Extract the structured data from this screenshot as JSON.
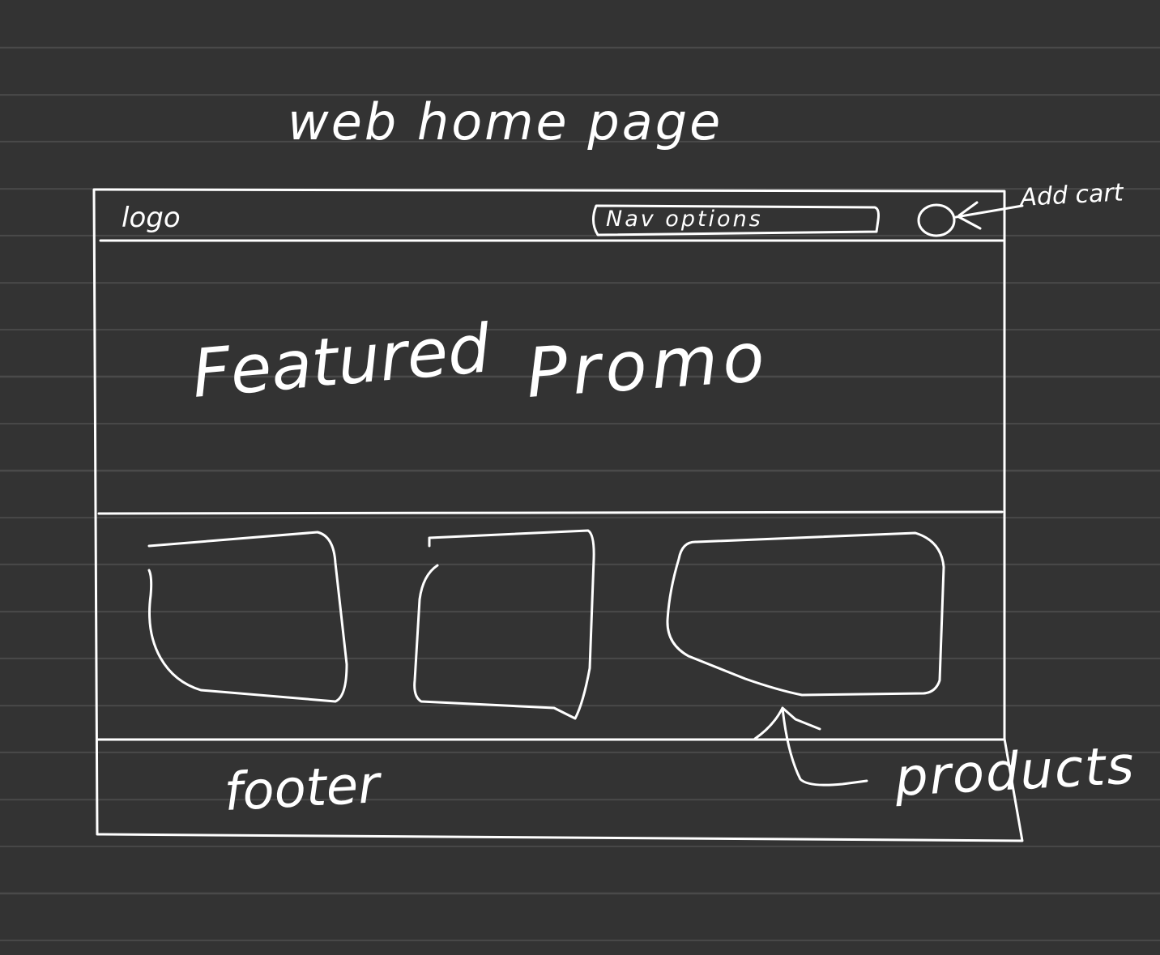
{
  "sketch": {
    "title": "web home page",
    "header": {
      "logo_label": "logo",
      "nav_label": "Nav options",
      "cart_annotation": "Add cart"
    },
    "hero": {
      "label_featured": "Featured",
      "label_promo": "Promo"
    },
    "products": {
      "annotation": "products",
      "count": 3
    },
    "footer": {
      "label": "footer"
    },
    "colors": {
      "background": "#333333",
      "ink": "#ffffff",
      "rule_lines": "#4a4a4a"
    }
  }
}
